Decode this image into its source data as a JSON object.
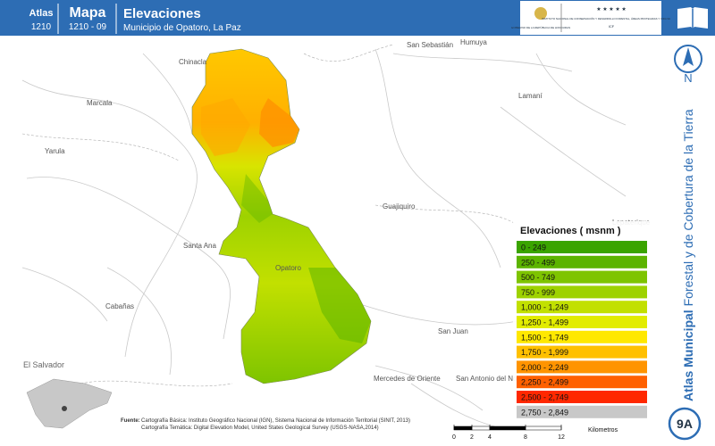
{
  "header": {
    "atlas_label": "Atlas",
    "atlas_code": "1210",
    "mapa_label": "Mapa",
    "mapa_code": "1210 - 09",
    "title": "Elevaciones",
    "subtitle": "Municipio de Opatoro, La Paz"
  },
  "logos": {
    "government": "GOBIERNO DE LA REPÚBLICA DE HONDURAS",
    "institute": "INSTITUTO NACIONAL DE CONSERVACIÓN Y DESARROLLO FORESTAL, ÁREAS PROTEGIDAS Y VIDA SILVESTRE",
    "institute_code": "ICF"
  },
  "north": "N",
  "sidebar": {
    "bold": "Atlas Municipal",
    "rest": "Forestal y de Cobertura de la Tierra",
    "badge": "9A"
  },
  "places": [
    "Chinacla",
    "San Sebastián",
    "Humuya",
    "Marcala",
    "Lamaní",
    "Yarula",
    "Guajiquiro",
    "Santa Ana",
    "Opatoro",
    "Cabañas",
    "San Juan",
    "El Salvador",
    "Mercedes de Oriente",
    "San Antonio del Norte",
    "Lepaterique"
  ],
  "legend": {
    "title": "Elevaciones ( msnm )",
    "items": [
      {
        "label": "0 - 249",
        "color": "#3aa400"
      },
      {
        "label": "250 - 499",
        "color": "#5cb400"
      },
      {
        "label": "500 - 749",
        "color": "#7ec400"
      },
      {
        "label": "750 - 999",
        "color": "#9ed200"
      },
      {
        "label": "1,000 - 1,249",
        "color": "#c2e000"
      },
      {
        "label": "1,250 - 1,499",
        "color": "#e2ec00"
      },
      {
        "label": "1,500 - 1,749",
        "color": "#ffe800"
      },
      {
        "label": "1,750 - 1,999",
        "color": "#ffc000"
      },
      {
        "label": "2,000 - 2,249",
        "color": "#ff9400"
      },
      {
        "label": "2,250 - 2,499",
        "color": "#ff6000"
      },
      {
        "label": "2,500 - 2,749",
        "color": "#ff2800"
      },
      {
        "label": "2,750 - 2,849",
        "color": "#c8c8c8"
      }
    ]
  },
  "source": {
    "label": "Fuente:",
    "line1": "Cartografía Básica: Instituto Geográfico Nacional (IGN), Sistema Nacional de Información Territorial (SINIT, 2013)",
    "line2": "Cartografía Temática: Digital Elevation Model, United States Geological Survey (USGS-NASA,2014)"
  },
  "scale": {
    "ticks": [
      0,
      2,
      4,
      8,
      12
    ],
    "unit": "Kilometros"
  }
}
